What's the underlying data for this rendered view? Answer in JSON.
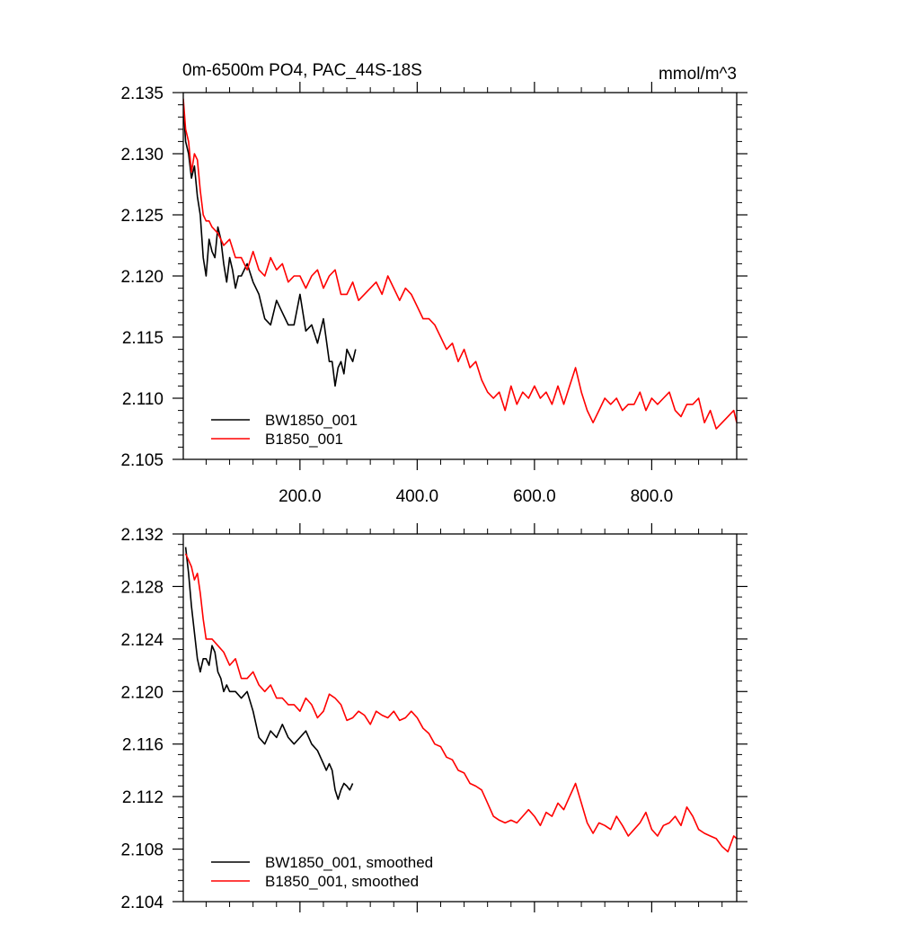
{
  "chart_data": [
    {
      "type": "line",
      "title": "0m-6500m PO4, PAC_44S-18S",
      "units": "mmol/m^3",
      "xlim": [
        1,
        945
      ],
      "ylim": [
        2.105,
        2.135
      ],
      "y_ticks": [
        2.105,
        2.11,
        2.115,
        2.12,
        2.125,
        2.13,
        2.135
      ],
      "y_tick_labels": [
        "2.105",
        "2.110",
        "2.115",
        "2.120",
        "2.125",
        "2.130",
        "2.135"
      ],
      "x_ticks": [
        200,
        400,
        600,
        800
      ],
      "x_tick_labels": [
        "200.0",
        "400.0",
        "600.0",
        "800.0"
      ],
      "grid": false,
      "legend_position": "bottom-left",
      "series": [
        {
          "name": "BW1850_001",
          "color": "#000000",
          "x": [
            1,
            5,
            10,
            15,
            20,
            25,
            30,
            35,
            40,
            45,
            50,
            55,
            60,
            65,
            70,
            75,
            80,
            85,
            90,
            95,
            100,
            110,
            120,
            130,
            140,
            150,
            160,
            170,
            180,
            190,
            200,
            210,
            220,
            230,
            240,
            250,
            255,
            260,
            265,
            270,
            275,
            280,
            285,
            290,
            295
          ],
          "values": [
            2.134,
            2.131,
            2.13,
            2.128,
            2.129,
            2.1265,
            2.125,
            2.1215,
            2.12,
            2.123,
            2.122,
            2.1215,
            2.124,
            2.123,
            2.121,
            2.1195,
            2.1215,
            2.1205,
            2.119,
            2.12,
            2.12,
            2.121,
            2.1195,
            2.1185,
            2.1165,
            2.116,
            2.118,
            2.117,
            2.116,
            2.116,
            2.1185,
            2.1155,
            2.116,
            2.1145,
            2.1165,
            2.113,
            2.113,
            2.111,
            2.1125,
            2.113,
            2.112,
            2.114,
            2.1135,
            2.113,
            2.114
          ]
        },
        {
          "name": "B1850_001",
          "color": "#ff0000",
          "x": [
            1,
            5,
            10,
            15,
            20,
            25,
            30,
            35,
            40,
            45,
            50,
            60,
            70,
            80,
            90,
            100,
            110,
            120,
            130,
            140,
            150,
            160,
            170,
            180,
            190,
            200,
            210,
            220,
            230,
            240,
            250,
            260,
            270,
            280,
            290,
            300,
            310,
            320,
            330,
            340,
            350,
            360,
            370,
            380,
            390,
            400,
            410,
            420,
            430,
            440,
            450,
            460,
            470,
            480,
            490,
            500,
            510,
            520,
            530,
            540,
            550,
            560,
            570,
            580,
            590,
            600,
            610,
            620,
            630,
            640,
            650,
            660,
            670,
            680,
            690,
            700,
            710,
            720,
            730,
            740,
            750,
            760,
            770,
            780,
            790,
            800,
            810,
            820,
            830,
            840,
            850,
            860,
            870,
            880,
            890,
            900,
            910,
            920,
            930,
            940,
            945
          ],
          "values": [
            2.1345,
            2.132,
            2.131,
            2.1285,
            2.13,
            2.1295,
            2.127,
            2.125,
            2.1245,
            2.1245,
            2.124,
            2.1235,
            2.1225,
            2.123,
            2.1215,
            2.1215,
            2.1205,
            2.122,
            2.1205,
            2.12,
            2.1215,
            2.1205,
            2.121,
            2.1195,
            2.12,
            2.12,
            2.119,
            2.12,
            2.1205,
            2.119,
            2.12,
            2.1205,
            2.1185,
            2.1185,
            2.1195,
            2.118,
            2.1185,
            2.119,
            2.1195,
            2.1185,
            2.12,
            2.119,
            2.118,
            2.119,
            2.1185,
            2.1175,
            2.1165,
            2.1165,
            2.116,
            2.115,
            2.114,
            2.1145,
            2.113,
            2.114,
            2.1125,
            2.113,
            2.1115,
            2.1105,
            2.11,
            2.1105,
            2.109,
            2.111,
            2.1095,
            2.1105,
            2.11,
            2.111,
            2.11,
            2.1105,
            2.1095,
            2.111,
            2.1095,
            2.111,
            2.1125,
            2.1105,
            2.109,
            2.108,
            2.109,
            2.11,
            2.1095,
            2.11,
            2.109,
            2.1095,
            2.1095,
            2.1105,
            2.109,
            2.11,
            2.1095,
            2.11,
            2.1105,
            2.109,
            2.1085,
            2.1095,
            2.1095,
            2.11,
            2.108,
            2.109,
            2.1075,
            2.108,
            2.1085,
            2.109,
            2.108
          ]
        }
      ]
    },
    {
      "type": "line",
      "xlim": [
        1,
        945
      ],
      "ylim": [
        2.104,
        2.132
      ],
      "y_ticks": [
        2.104,
        2.108,
        2.112,
        2.116,
        2.12,
        2.124,
        2.128,
        2.132
      ],
      "y_tick_labels": [
        "2.104",
        "2.108",
        "2.112",
        "2.116",
        "2.120",
        "2.124",
        "2.128",
        "2.132"
      ],
      "x_ticks": [
        200,
        400,
        600,
        800
      ],
      "grid": false,
      "legend_position": "bottom-left",
      "series": [
        {
          "name": "BW1850_001, smoothed",
          "color": "#000000",
          "x": [
            5,
            10,
            15,
            20,
            25,
            30,
            35,
            40,
            45,
            50,
            55,
            60,
            65,
            70,
            75,
            80,
            90,
            100,
            110,
            120,
            130,
            140,
            150,
            160,
            170,
            180,
            190,
            200,
            210,
            220,
            230,
            240,
            245,
            250,
            255,
            260,
            265,
            270,
            275,
            280,
            285,
            290
          ],
          "values": [
            2.131,
            2.129,
            2.1265,
            2.1245,
            2.1225,
            2.1215,
            2.1225,
            2.1225,
            2.122,
            2.1235,
            2.123,
            2.1215,
            2.121,
            2.12,
            2.1205,
            2.12,
            2.12,
            2.1195,
            2.12,
            2.1185,
            2.1165,
            2.116,
            2.117,
            2.1165,
            2.1175,
            2.1165,
            2.116,
            2.1165,
            2.117,
            2.116,
            2.1155,
            2.1145,
            2.114,
            2.1145,
            2.114,
            2.1125,
            2.1118,
            2.1125,
            2.113,
            2.1128,
            2.1125,
            2.113
          ]
        },
        {
          "name": "B1850_001, smoothed",
          "color": "#ff0000",
          "x": [
            5,
            10,
            15,
            20,
            25,
            30,
            35,
            40,
            45,
            50,
            60,
            70,
            80,
            90,
            100,
            110,
            120,
            130,
            140,
            150,
            160,
            170,
            180,
            190,
            200,
            210,
            220,
            230,
            240,
            250,
            260,
            270,
            280,
            290,
            300,
            310,
            320,
            330,
            340,
            350,
            360,
            370,
            380,
            390,
            400,
            410,
            420,
            430,
            440,
            450,
            460,
            470,
            480,
            490,
            500,
            510,
            520,
            530,
            540,
            550,
            560,
            570,
            580,
            590,
            600,
            610,
            620,
            630,
            640,
            650,
            660,
            670,
            680,
            690,
            700,
            710,
            720,
            730,
            740,
            750,
            760,
            770,
            780,
            790,
            800,
            810,
            820,
            830,
            840,
            850,
            860,
            870,
            880,
            890,
            900,
            910,
            920,
            930,
            940,
            945
          ],
          "values": [
            2.1305,
            2.13,
            2.1295,
            2.1285,
            2.129,
            2.1275,
            2.1255,
            2.124,
            2.124,
            2.124,
            2.1235,
            2.123,
            2.122,
            2.1225,
            2.121,
            2.121,
            2.1215,
            2.1205,
            2.12,
            2.1205,
            2.1195,
            2.1195,
            2.119,
            2.119,
            2.1185,
            2.1195,
            2.119,
            2.118,
            2.1185,
            2.1198,
            2.1195,
            2.119,
            2.1178,
            2.118,
            2.1185,
            2.1182,
            2.1175,
            2.1185,
            2.1182,
            2.118,
            2.1185,
            2.1178,
            2.118,
            2.1185,
            2.118,
            2.1172,
            2.1168,
            2.116,
            2.1158,
            2.115,
            2.1148,
            2.114,
            2.1138,
            2.113,
            2.1128,
            2.1125,
            2.1115,
            2.1105,
            2.1102,
            2.11,
            2.1102,
            2.11,
            2.1105,
            2.111,
            2.1105,
            2.1098,
            2.1108,
            2.1105,
            2.1115,
            2.111,
            2.112,
            2.113,
            2.1115,
            2.11,
            2.1092,
            2.11,
            2.1098,
            2.1095,
            2.1105,
            2.1098,
            2.109,
            2.1095,
            2.11,
            2.1108,
            2.1095,
            2.109,
            2.1098,
            2.11,
            2.1105,
            2.1098,
            2.1112,
            2.1105,
            2.1095,
            2.1092,
            2.109,
            2.1088,
            2.1082,
            2.1078,
            2.109,
            2.1088
          ]
        }
      ]
    }
  ]
}
